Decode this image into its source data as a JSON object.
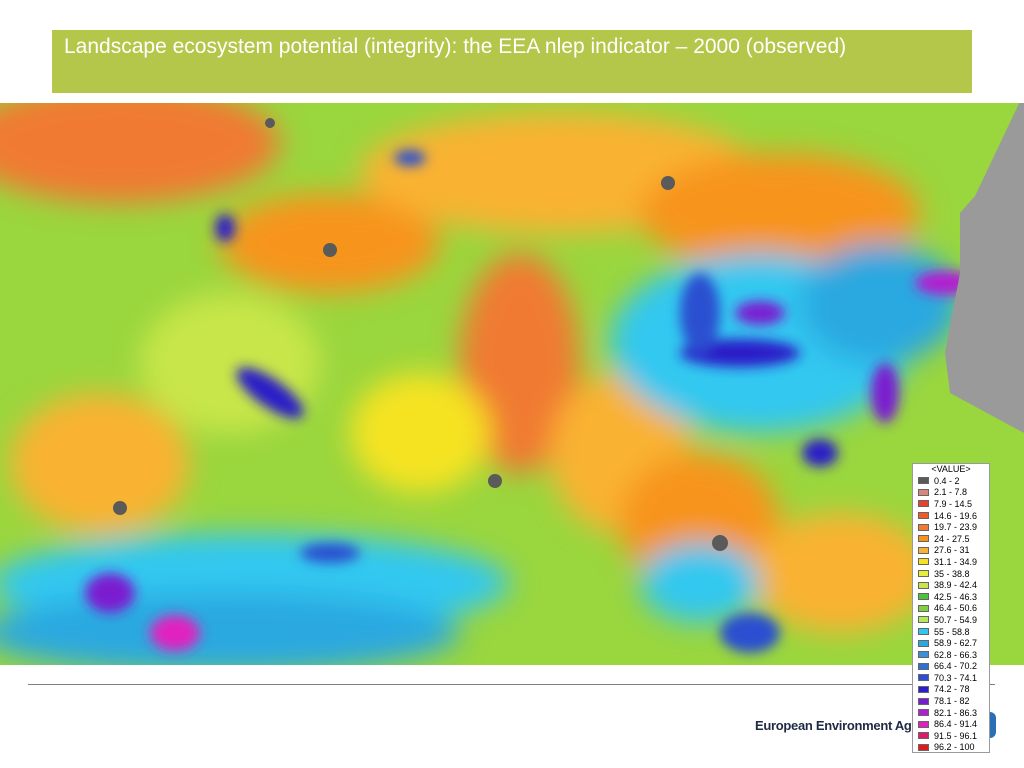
{
  "title": "Landscape ecosystem potential (integrity): the EEA nlep indicator – 2000 (observed)",
  "legend": {
    "heading": "<VALUE>",
    "items": [
      {
        "label": "0.4 - 2",
        "color": "#5a5a5a"
      },
      {
        "label": "2.1 - 7.8",
        "color": "#d9857a"
      },
      {
        "label": "7.9 - 14.5",
        "color": "#e8432a"
      },
      {
        "label": "14.6 - 19.6",
        "color": "#ef5a26"
      },
      {
        "label": "19.7 - 23.9",
        "color": "#f07a30"
      },
      {
        "label": "24 - 27.5",
        "color": "#f7941d"
      },
      {
        "label": "27.6 - 31",
        "color": "#f9b233"
      },
      {
        "label": "31.1 - 34.9",
        "color": "#f5e320"
      },
      {
        "label": "35 - 38.8",
        "color": "#e6ee3a"
      },
      {
        "label": "38.9 - 42.4",
        "color": "#c8e64a"
      },
      {
        "label": "42.5 - 46.3",
        "color": "#4cc43a"
      },
      {
        "label": "46.4 - 50.6",
        "color": "#7ed13c"
      },
      {
        "label": "50.7 - 54.9",
        "color": "#b5e85a"
      },
      {
        "label": "55 - 58.8",
        "color": "#31c8f0"
      },
      {
        "label": "58.9 - 62.7",
        "color": "#2aa8e0"
      },
      {
        "label": "62.8 - 66.3",
        "color": "#3d8fd6"
      },
      {
        "label": "66.4 - 70.2",
        "color": "#2f6fd8"
      },
      {
        "label": "70.3 - 74.1",
        "color": "#2a4fd0"
      },
      {
        "label": "74.2 - 78",
        "color": "#2a1fc8"
      },
      {
        "label": "78.1 - 82",
        "color": "#7a1fd0"
      },
      {
        "label": "82.1 - 86.3",
        "color": "#b21fd0"
      },
      {
        "label": "86.4 - 91.4",
        "color": "#e020c0"
      },
      {
        "label": "91.5 - 96.1",
        "color": "#e01a6a"
      },
      {
        "label": "96.2 - 100",
        "color": "#e01a1a"
      }
    ]
  },
  "footer": "European Environment Ag"
}
